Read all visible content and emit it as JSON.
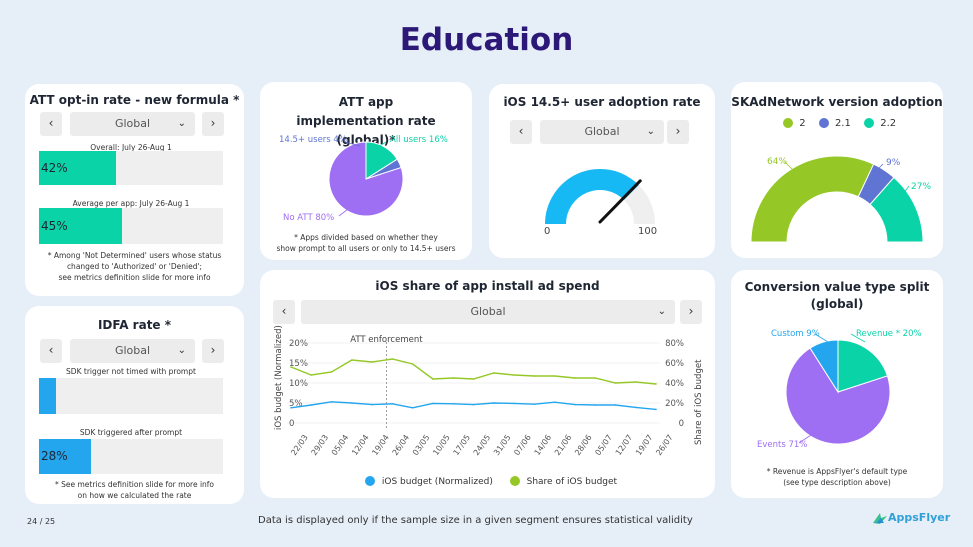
{
  "page_title": "Education",
  "colors": {
    "navy": "#2b1877",
    "teal": "#0ad3a8",
    "purple": "#9e6ef3",
    "blue": "#24a6ee",
    "green": "#95c826",
    "indigo": "#5f74d3",
    "needle": "#111111"
  },
  "att_optin": {
    "title": "ATT opt-in rate - new formula *",
    "selector": "Global",
    "overall_label": "Overall: July 26-Aug 1",
    "overall_value": "42%",
    "overall_fraction": 0.42,
    "average_label": "Average per app: July 26-Aug 1",
    "average_value": "45%",
    "average_fraction": 0.45,
    "footnote_1": "* Among 'Not Determined' users whose status",
    "footnote_2": "changed to 'Authorized' or 'Denied';",
    "footnote_3": "see metrics definition slide for more info"
  },
  "idfa": {
    "title": "IDFA rate *",
    "selector": "Global",
    "sdk_not_timed_label": "SDK trigger not timed with prompt",
    "sdk_not_timed_value": "",
    "sdk_not_timed_fraction": 0.09,
    "sdk_after_label": "SDK triggered after prompt",
    "sdk_after_value": "28%",
    "sdk_after_fraction": 0.28,
    "footnote_1": "* See metrics definition slide for more info",
    "footnote_2": "on how we calculated the rate"
  },
  "ios_adoption": {
    "title": "iOS 14.5+ user adoption rate",
    "selector": "Global",
    "gauge_min": "0",
    "gauge_max": "100",
    "gauge_value_fraction": 0.75
  },
  "skad": {
    "title": "SKAdNetwork version adoption",
    "legend": [
      "2",
      "2.1",
      "2.2"
    ],
    "label_2": "64%",
    "label_21": "9%",
    "label_22": "27%"
  },
  "ios_share": {
    "title": "iOS share of app install ad spend",
    "selector": "Global",
    "annotation": "ATT enforcement",
    "y_left_title": "iOS budget (Normalized)",
    "y_right_title": "Share of iOS budget",
    "legend_blue": "iOS budget (Normalized)",
    "legend_green": "Share of iOS budget"
  },
  "conv_value": {
    "title_1": "Conversion value type split",
    "title_2": "(global)",
    "label_custom": "Custom 9%",
    "label_revenue": "Revenue * 20%",
    "label_events": "Events 71%",
    "footnote_1": "* Revenue is AppsFlyer's default type",
    "footnote_2": "(see type description above)"
  },
  "footer": {
    "page_number": "24 / 25",
    "note": "Data is displayed only if the sample size in a given segment ensures statistical validity",
    "brand": "AppsFlyer"
  },
  "chart_data": [
    {
      "type": "pie",
      "title": "ATT app implementation rate (global)*",
      "labels": [
        "All users",
        "14.5+ users",
        "No ATT"
      ],
      "values": [
        16,
        4,
        80
      ],
      "colors": [
        "#0ad3a8",
        "#5f74d3",
        "#9e6ef3"
      ],
      "annotations": [
        "* Apps divided based on whether they",
        "show prompt to all users or only to 14.5+ users"
      ]
    },
    {
      "type": "pie",
      "title": "SKAdNetwork version adoption",
      "style": "half-donut",
      "labels": [
        "2",
        "2.1",
        "2.2"
      ],
      "values": [
        64,
        9,
        27
      ],
      "colors": [
        "#95c826",
        "#5f74d3",
        "#0ad3a8"
      ],
      "legend": "top"
    },
    {
      "type": "line",
      "title": "iOS share of app install ad spend",
      "categories": [
        "22/03",
        "29/03",
        "05/04",
        "12/04",
        "19/04",
        "26/04",
        "03/05",
        "10/05",
        "17/05",
        "24/05",
        "31/05",
        "07/06",
        "14/06",
        "21/06",
        "28/06",
        "05/07",
        "12/07",
        "19/07",
        "26/07"
      ],
      "y_left_ticks": [
        "0",
        "5%",
        "10%",
        "15%",
        "20%"
      ],
      "y_right_ticks": [
        "0",
        "20%",
        "40%",
        "60%",
        "80%"
      ],
      "ylim_left": [
        0,
        20
      ],
      "ylim_right": [
        0,
        80
      ],
      "series": [
        {
          "name": "iOS budget (Normalized)",
          "axis": "left",
          "color": "#24a6ee",
          "values": [
            3.8,
            4.5,
            5.3,
            5.0,
            4.6,
            4.8,
            3.8,
            4.9,
            4.8,
            4.6,
            5.0,
            4.9,
            4.7,
            5.2,
            4.6,
            4.5,
            4.5,
            3.9,
            3.4
          ]
        },
        {
          "name": "Share of iOS budget",
          "axis": "right",
          "color": "#95c826",
          "values": [
            56,
            48,
            51,
            63,
            61,
            64,
            59,
            44,
            45,
            44,
            50,
            48,
            47,
            47,
            45,
            45,
            40,
            41,
            39
          ]
        }
      ],
      "annotation": {
        "text": "ATT enforcement",
        "x": "26/04"
      },
      "legend": "bottom"
    },
    {
      "type": "pie",
      "title": "Conversion value type split (global)",
      "labels": [
        "Revenue *",
        "Events",
        "Custom"
      ],
      "values": [
        20,
        71,
        9
      ],
      "colors": [
        "#0ad3a8",
        "#9e6ef3",
        "#24a6ee"
      ]
    }
  ]
}
